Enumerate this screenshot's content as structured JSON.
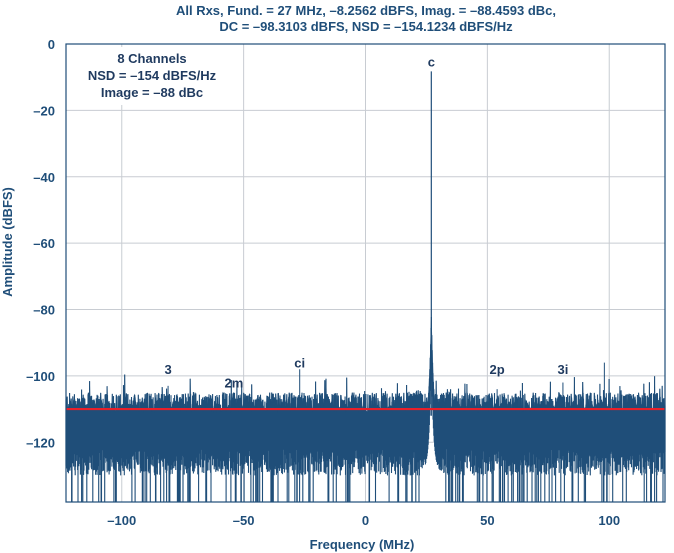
{
  "chart_data": {
    "type": "line",
    "title_lines": [
      "All Rxs, Fund. = 27 MHz, –8.2562 dBFS, Imag. = –88.4593 dBc,",
      "DC = –98.3103 dBFS, NSD = –154.1234 dBFS/Hz"
    ],
    "xlabel": "Frequency (MHz)",
    "ylabel": "Amplitude (dBFS)",
    "xlim": [
      -122.88,
      122.88
    ],
    "ylim": [
      -138,
      0
    ],
    "x_ticks": [
      -100,
      -50,
      0,
      50,
      100
    ],
    "x_tick_labels": [
      "–100",
      "–50",
      "0",
      "50",
      "100"
    ],
    "y_ticks": [
      0,
      -20,
      -40,
      -60,
      -80,
      -100,
      -120
    ],
    "y_tick_labels": [
      "0",
      "–20",
      "–40",
      "–60",
      "–80",
      "–100",
      "–120"
    ],
    "grid": true,
    "info_box": [
      "8 Channels",
      "NSD = –154 dBFS/Hz",
      "Image = –88 dBc"
    ],
    "noise_floor": {
      "value": -110,
      "color": "#e8202a"
    },
    "spectrum": {
      "color": "#1f4e79",
      "noise_top": -108,
      "noise_bottom": -122,
      "fundamental": {
        "x": 27,
        "y": -8.2562
      }
    },
    "annotations": [
      {
        "label": "c",
        "x": 27,
        "y": -8.2562
      },
      {
        "label": "ci",
        "x": -27,
        "y": -99
      },
      {
        "label": "3",
        "x": -81,
        "y": -101
      },
      {
        "label": "2m",
        "x": -54,
        "y": -105
      },
      {
        "label": "2p",
        "x": 54,
        "y": -101
      },
      {
        "label": "3i",
        "x": 81,
        "y": -101
      }
    ],
    "spurs": [
      {
        "x": -27,
        "y": -98
      },
      {
        "x": -81,
        "y": -103
      },
      {
        "x": -54,
        "y": -105
      },
      {
        "x": 54,
        "y": -104
      },
      {
        "x": 81,
        "y": -102
      },
      {
        "x": 98,
        "y": -96
      }
    ]
  }
}
